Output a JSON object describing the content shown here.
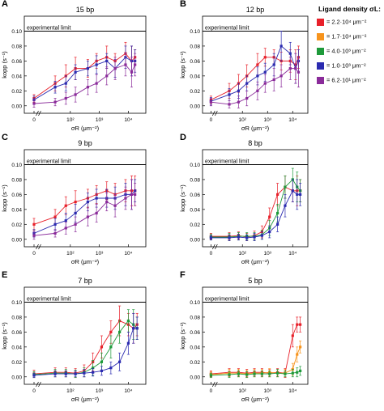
{
  "legend": {
    "title": "Ligand density σL:",
    "colors": [
      "#e8202a",
      "#f7941d",
      "#1e9a3a",
      "#2b2bb0",
      "#8a2b9a"
    ],
    "items": [
      {
        "label": "= 2.2·10⁴ μm⁻²",
        "color": "#e8202a"
      },
      {
        "label": "= 1.7·10⁴ μm⁻²",
        "color": "#f7941d"
      },
      {
        "label": "= 4.0·10³ μm⁻²",
        "color": "#1e9a3a"
      },
      {
        "label": "= 1.0·10³ μm⁻²",
        "color": "#2b2bb0"
      },
      {
        "label": "= 6.2·10¹ μm⁻²",
        "color": "#8a2b9a"
      }
    ]
  },
  "chart_data": [
    {
      "type": "line",
      "panel": "A",
      "title": "15 bp",
      "xlabel": "σR (μm⁻²)",
      "ylabel": "kopp (s⁻¹)",
      "x_scale": "log",
      "ylim": [
        -0.01,
        0.12
      ],
      "yticks": [
        "0.00",
        "0.02",
        "0.04",
        "0.06",
        "0.08",
        "0.10"
      ],
      "xticks": [
        "0",
        "10²",
        "10³",
        "10⁴"
      ],
      "annotation": "experimental limit",
      "reference_y": 0.1,
      "series": [
        {
          "color": "#e8202a",
          "x": [
            0,
            30,
            70,
            150,
            400,
            800,
            1800,
            3500,
            8000,
            13000,
            17000
          ],
          "y": [
            0.01,
            0.03,
            0.04,
            0.05,
            0.05,
            0.06,
            0.065,
            0.06,
            0.07,
            0.06,
            0.065
          ],
          "err": [
            0.005,
            0.01,
            0.015,
            0.015,
            0.012,
            0.01,
            0.015,
            0.01,
            0.015,
            0.02,
            0.01
          ]
        },
        {
          "color": "#2b2bb0",
          "x": [
            0,
            30,
            70,
            150,
            400,
            800,
            1800,
            3500,
            8000,
            13000,
            17000
          ],
          "y": [
            0.008,
            0.025,
            0.03,
            0.045,
            0.05,
            0.055,
            0.06,
            0.05,
            0.065,
            0.06,
            0.06
          ],
          "err": [
            0.005,
            0.008,
            0.01,
            0.01,
            0.01,
            0.012,
            0.01,
            0.012,
            0.015,
            0.02,
            0.015
          ]
        },
        {
          "color": "#8a2b9a",
          "x": [
            0,
            30,
            70,
            150,
            400,
            800,
            1800,
            3500,
            8000,
            13000,
            17000
          ],
          "y": [
            0.003,
            0.005,
            0.01,
            0.015,
            0.025,
            0.03,
            0.04,
            0.05,
            0.055,
            0.045,
            0.055
          ],
          "err": [
            0.005,
            0.005,
            0.008,
            0.01,
            0.01,
            0.012,
            0.012,
            0.015,
            0.015,
            0.02,
            0.015
          ]
        }
      ]
    },
    {
      "type": "line",
      "panel": "B",
      "title": "12 bp",
      "xlabel": "σR (μm⁻²)",
      "ylabel": "kopp (s⁻¹)",
      "x_scale": "log",
      "ylim": [
        -0.01,
        0.12
      ],
      "yticks": [
        "0.00",
        "0.02",
        "0.04",
        "0.06",
        "0.08",
        "0.10"
      ],
      "xticks": [
        "0",
        "10²",
        "10³",
        "10⁴"
      ],
      "annotation": "experimental limit",
      "reference_y": 0.1,
      "series": [
        {
          "color": "#e8202a",
          "x": [
            0,
            30,
            70,
            150,
            400,
            800,
            1800,
            3500,
            8000,
            13000,
            17000
          ],
          "y": [
            0.008,
            0.02,
            0.03,
            0.04,
            0.055,
            0.065,
            0.065,
            0.06,
            0.06,
            0.055,
            0.065
          ],
          "err": [
            0.005,
            0.01,
            0.012,
            0.015,
            0.015,
            0.012,
            0.01,
            0.012,
            0.015,
            0.02,
            0.015
          ]
        },
        {
          "color": "#2b2bb0",
          "x": [
            0,
            30,
            70,
            150,
            400,
            800,
            1800,
            3500,
            8000,
            13000,
            17000
          ],
          "y": [
            0.006,
            0.015,
            0.02,
            0.03,
            0.04,
            0.045,
            0.055,
            0.08,
            0.07,
            0.05,
            0.06
          ],
          "err": [
            0.005,
            0.008,
            0.01,
            0.01,
            0.012,
            0.012,
            0.015,
            0.02,
            0.015,
            0.02,
            0.015
          ]
        },
        {
          "color": "#8a2b9a",
          "x": [
            0,
            30,
            70,
            150,
            400,
            800,
            1800,
            3500,
            8000,
            13000,
            17000
          ],
          "y": [
            0.005,
            0.002,
            0.005,
            0.01,
            0.02,
            0.03,
            0.035,
            0.04,
            0.05,
            0.05,
            0.045
          ],
          "err": [
            0.005,
            0.005,
            0.008,
            0.01,
            0.012,
            0.012,
            0.015,
            0.015,
            0.015,
            0.02,
            0.02
          ]
        }
      ]
    },
    {
      "type": "line",
      "panel": "C",
      "title": "9 bp",
      "xlabel": "σR (μm⁻²)",
      "ylabel": "kopp (s⁻¹)",
      "x_scale": "log",
      "ylim": [
        -0.01,
        0.12
      ],
      "yticks": [
        "0.00",
        "0.02",
        "0.04",
        "0.06",
        "0.08",
        "0.10"
      ],
      "xticks": [
        "0",
        "10²",
        "10³",
        "10⁴"
      ],
      "annotation": "experimental limit",
      "reference_y": 0.1,
      "series": [
        {
          "color": "#e8202a",
          "x": [
            0,
            30,
            70,
            150,
            400,
            800,
            1800,
            3500,
            8000,
            13000,
            17000
          ],
          "y": [
            0.02,
            0.03,
            0.045,
            0.05,
            0.055,
            0.06,
            0.065,
            0.06,
            0.065,
            0.065,
            0.065
          ],
          "err": [
            0.008,
            0.01,
            0.012,
            0.015,
            0.012,
            0.012,
            0.012,
            0.015,
            0.015,
            0.02,
            0.02
          ]
        },
        {
          "color": "#2b2bb0",
          "x": [
            0,
            30,
            70,
            150,
            400,
            800,
            1800,
            3500,
            8000,
            13000,
            17000
          ],
          "y": [
            0.008,
            0.02,
            0.025,
            0.035,
            0.05,
            0.055,
            0.055,
            0.055,
            0.06,
            0.06,
            0.065
          ],
          "err": [
            0.005,
            0.008,
            0.01,
            0.012,
            0.012,
            0.012,
            0.012,
            0.015,
            0.015,
            0.02,
            0.015
          ]
        },
        {
          "color": "#8a2b9a",
          "x": [
            0,
            30,
            70,
            150,
            400,
            800,
            1800,
            3500,
            8000,
            13000,
            17000
          ],
          "y": [
            0.005,
            0.008,
            0.015,
            0.02,
            0.03,
            0.035,
            0.05,
            0.045,
            0.055,
            0.06,
            0.06
          ],
          "err": [
            0.005,
            0.005,
            0.008,
            0.01,
            0.012,
            0.012,
            0.012,
            0.015,
            0.015,
            0.02,
            0.015
          ]
        }
      ]
    },
    {
      "type": "line",
      "panel": "D",
      "title": "8 bp",
      "xlabel": "σR (μm⁻²)",
      "ylabel": "kopp (s⁻¹)",
      "x_scale": "log",
      "ylim": [
        -0.01,
        0.12
      ],
      "yticks": [
        "0.00",
        "0.02",
        "0.04",
        "0.06",
        "0.08",
        "0.10"
      ],
      "xticks": [
        "0",
        "10²",
        "10³",
        "10⁴"
      ],
      "annotation": "experimental limit",
      "reference_y": 0.1,
      "series": [
        {
          "color": "#e8202a",
          "x": [
            0,
            30,
            70,
            150,
            300,
            600,
            1200,
            2500,
            5000,
            10000,
            15000,
            20000
          ],
          "y": [
            0.004,
            0.004,
            0.005,
            0.003,
            0.005,
            0.01,
            0.03,
            0.06,
            0.07,
            0.065,
            0.065,
            0.065
          ],
          "err": [
            0.004,
            0.005,
            0.005,
            0.005,
            0.006,
            0.008,
            0.012,
            0.015,
            0.015,
            0.015,
            0.02,
            0.015
          ]
        },
        {
          "color": "#1e9a3a",
          "x": [
            0,
            30,
            70,
            150,
            300,
            600,
            1200,
            2500,
            5000,
            10000,
            15000,
            20000
          ],
          "y": [
            0.003,
            0.003,
            0.004,
            0.004,
            0.004,
            0.006,
            0.015,
            0.035,
            0.07,
            0.08,
            0.07,
            0.065
          ],
          "err": [
            0.004,
            0.005,
            0.005,
            0.005,
            0.005,
            0.006,
            0.01,
            0.012,
            0.015,
            0.015,
            0.02,
            0.015
          ]
        },
        {
          "color": "#2b2bb0",
          "x": [
            0,
            30,
            70,
            150,
            300,
            600,
            1200,
            2500,
            5000,
            10000,
            15000,
            20000
          ],
          "y": [
            0.002,
            0.002,
            0.003,
            0.002,
            0.003,
            0.005,
            0.01,
            0.02,
            0.045,
            0.065,
            0.06,
            0.06
          ],
          "err": [
            0.003,
            0.004,
            0.004,
            0.004,
            0.005,
            0.005,
            0.008,
            0.01,
            0.015,
            0.015,
            0.02,
            0.015
          ]
        }
      ]
    },
    {
      "type": "line",
      "panel": "E",
      "title": "7 bp",
      "xlabel": "σR (μm⁻²)",
      "ylabel": "kopp (s⁻¹)",
      "x_scale": "log",
      "ylim": [
        -0.01,
        0.12
      ],
      "yticks": [
        "0.00",
        "0.02",
        "0.04",
        "0.06",
        "0.08",
        "0.10"
      ],
      "xticks": [
        "0",
        "10²",
        "10³",
        "10⁴"
      ],
      "annotation": "experimental limit",
      "reference_y": 0.1,
      "series": [
        {
          "color": "#e8202a",
          "x": [
            0,
            30,
            70,
            150,
            300,
            600,
            1200,
            2500,
            5000,
            10000,
            15000,
            20000
          ],
          "y": [
            0.004,
            0.006,
            0.006,
            0.005,
            0.008,
            0.02,
            0.04,
            0.06,
            0.075,
            0.07,
            0.065,
            0.07
          ],
          "err": [
            0.005,
            0.006,
            0.006,
            0.006,
            0.008,
            0.012,
            0.015,
            0.015,
            0.02,
            0.015,
            0.02,
            0.015
          ]
        },
        {
          "color": "#1e9a3a",
          "x": [
            0,
            30,
            70,
            150,
            300,
            600,
            1200,
            2500,
            5000,
            10000,
            15000,
            20000
          ],
          "y": [
            0.003,
            0.005,
            0.005,
            0.004,
            0.006,
            0.012,
            0.02,
            0.04,
            0.06,
            0.075,
            0.07,
            0.065
          ],
          "err": [
            0.004,
            0.005,
            0.005,
            0.005,
            0.006,
            0.01,
            0.012,
            0.015,
            0.015,
            0.015,
            0.02,
            0.015
          ]
        },
        {
          "color": "#2b2bb0",
          "x": [
            0,
            30,
            70,
            150,
            300,
            600,
            1200,
            2500,
            5000,
            10000,
            15000,
            20000
          ],
          "y": [
            0.002,
            0.004,
            0.004,
            0.004,
            0.005,
            0.006,
            0.008,
            0.012,
            0.02,
            0.045,
            0.065,
            0.065
          ],
          "err": [
            0.003,
            0.004,
            0.004,
            0.004,
            0.005,
            0.005,
            0.006,
            0.008,
            0.012,
            0.015,
            0.02,
            0.015
          ]
        }
      ]
    },
    {
      "type": "line",
      "panel": "F",
      "title": "5 bp",
      "xlabel": "σR (μm⁻²)",
      "ylabel": "kopp (s⁻¹)",
      "x_scale": "log",
      "ylim": [
        -0.01,
        0.12
      ],
      "yticks": [
        "0.00",
        "0.02",
        "0.04",
        "0.06",
        "0.08",
        "0.10"
      ],
      "xticks": [
        "0",
        "10²",
        "10³",
        "10⁴"
      ],
      "annotation": "experimental limit",
      "reference_y": 0.1,
      "series": [
        {
          "color": "#e8202a",
          "x": [
            0,
            30,
            70,
            150,
            300,
            600,
            1200,
            2500,
            5000,
            10000,
            15000,
            20000
          ],
          "y": [
            0.004,
            0.006,
            0.006,
            0.005,
            0.006,
            0.006,
            0.005,
            0.006,
            0.005,
            0.055,
            0.07,
            0.07
          ],
          "err": [
            0.004,
            0.005,
            0.005,
            0.005,
            0.005,
            0.005,
            0.005,
            0.005,
            0.006,
            0.015,
            0.01,
            0.01
          ]
        },
        {
          "color": "#f7941d",
          "x": [
            0,
            30,
            70,
            150,
            300,
            600,
            1200,
            2500,
            5000,
            10000,
            15000,
            20000
          ],
          "y": [
            0.003,
            0.005,
            0.005,
            0.004,
            0.005,
            0.005,
            0.006,
            0.005,
            0.005,
            0.01,
            0.03,
            0.04
          ],
          "err": [
            0.004,
            0.005,
            0.005,
            0.005,
            0.005,
            0.005,
            0.005,
            0.005,
            0.005,
            0.008,
            0.01,
            0.008
          ]
        },
        {
          "color": "#1e9a3a",
          "x": [
            0,
            30,
            70,
            150,
            300,
            600,
            1200,
            2500,
            5000,
            10000,
            15000,
            20000
          ],
          "y": [
            0.002,
            0.003,
            0.004,
            0.003,
            0.004,
            0.004,
            0.004,
            0.005,
            0.004,
            0.005,
            0.006,
            0.008
          ],
          "err": [
            0.003,
            0.004,
            0.004,
            0.004,
            0.004,
            0.004,
            0.004,
            0.005,
            0.004,
            0.005,
            0.006,
            0.006
          ]
        }
      ]
    }
  ]
}
